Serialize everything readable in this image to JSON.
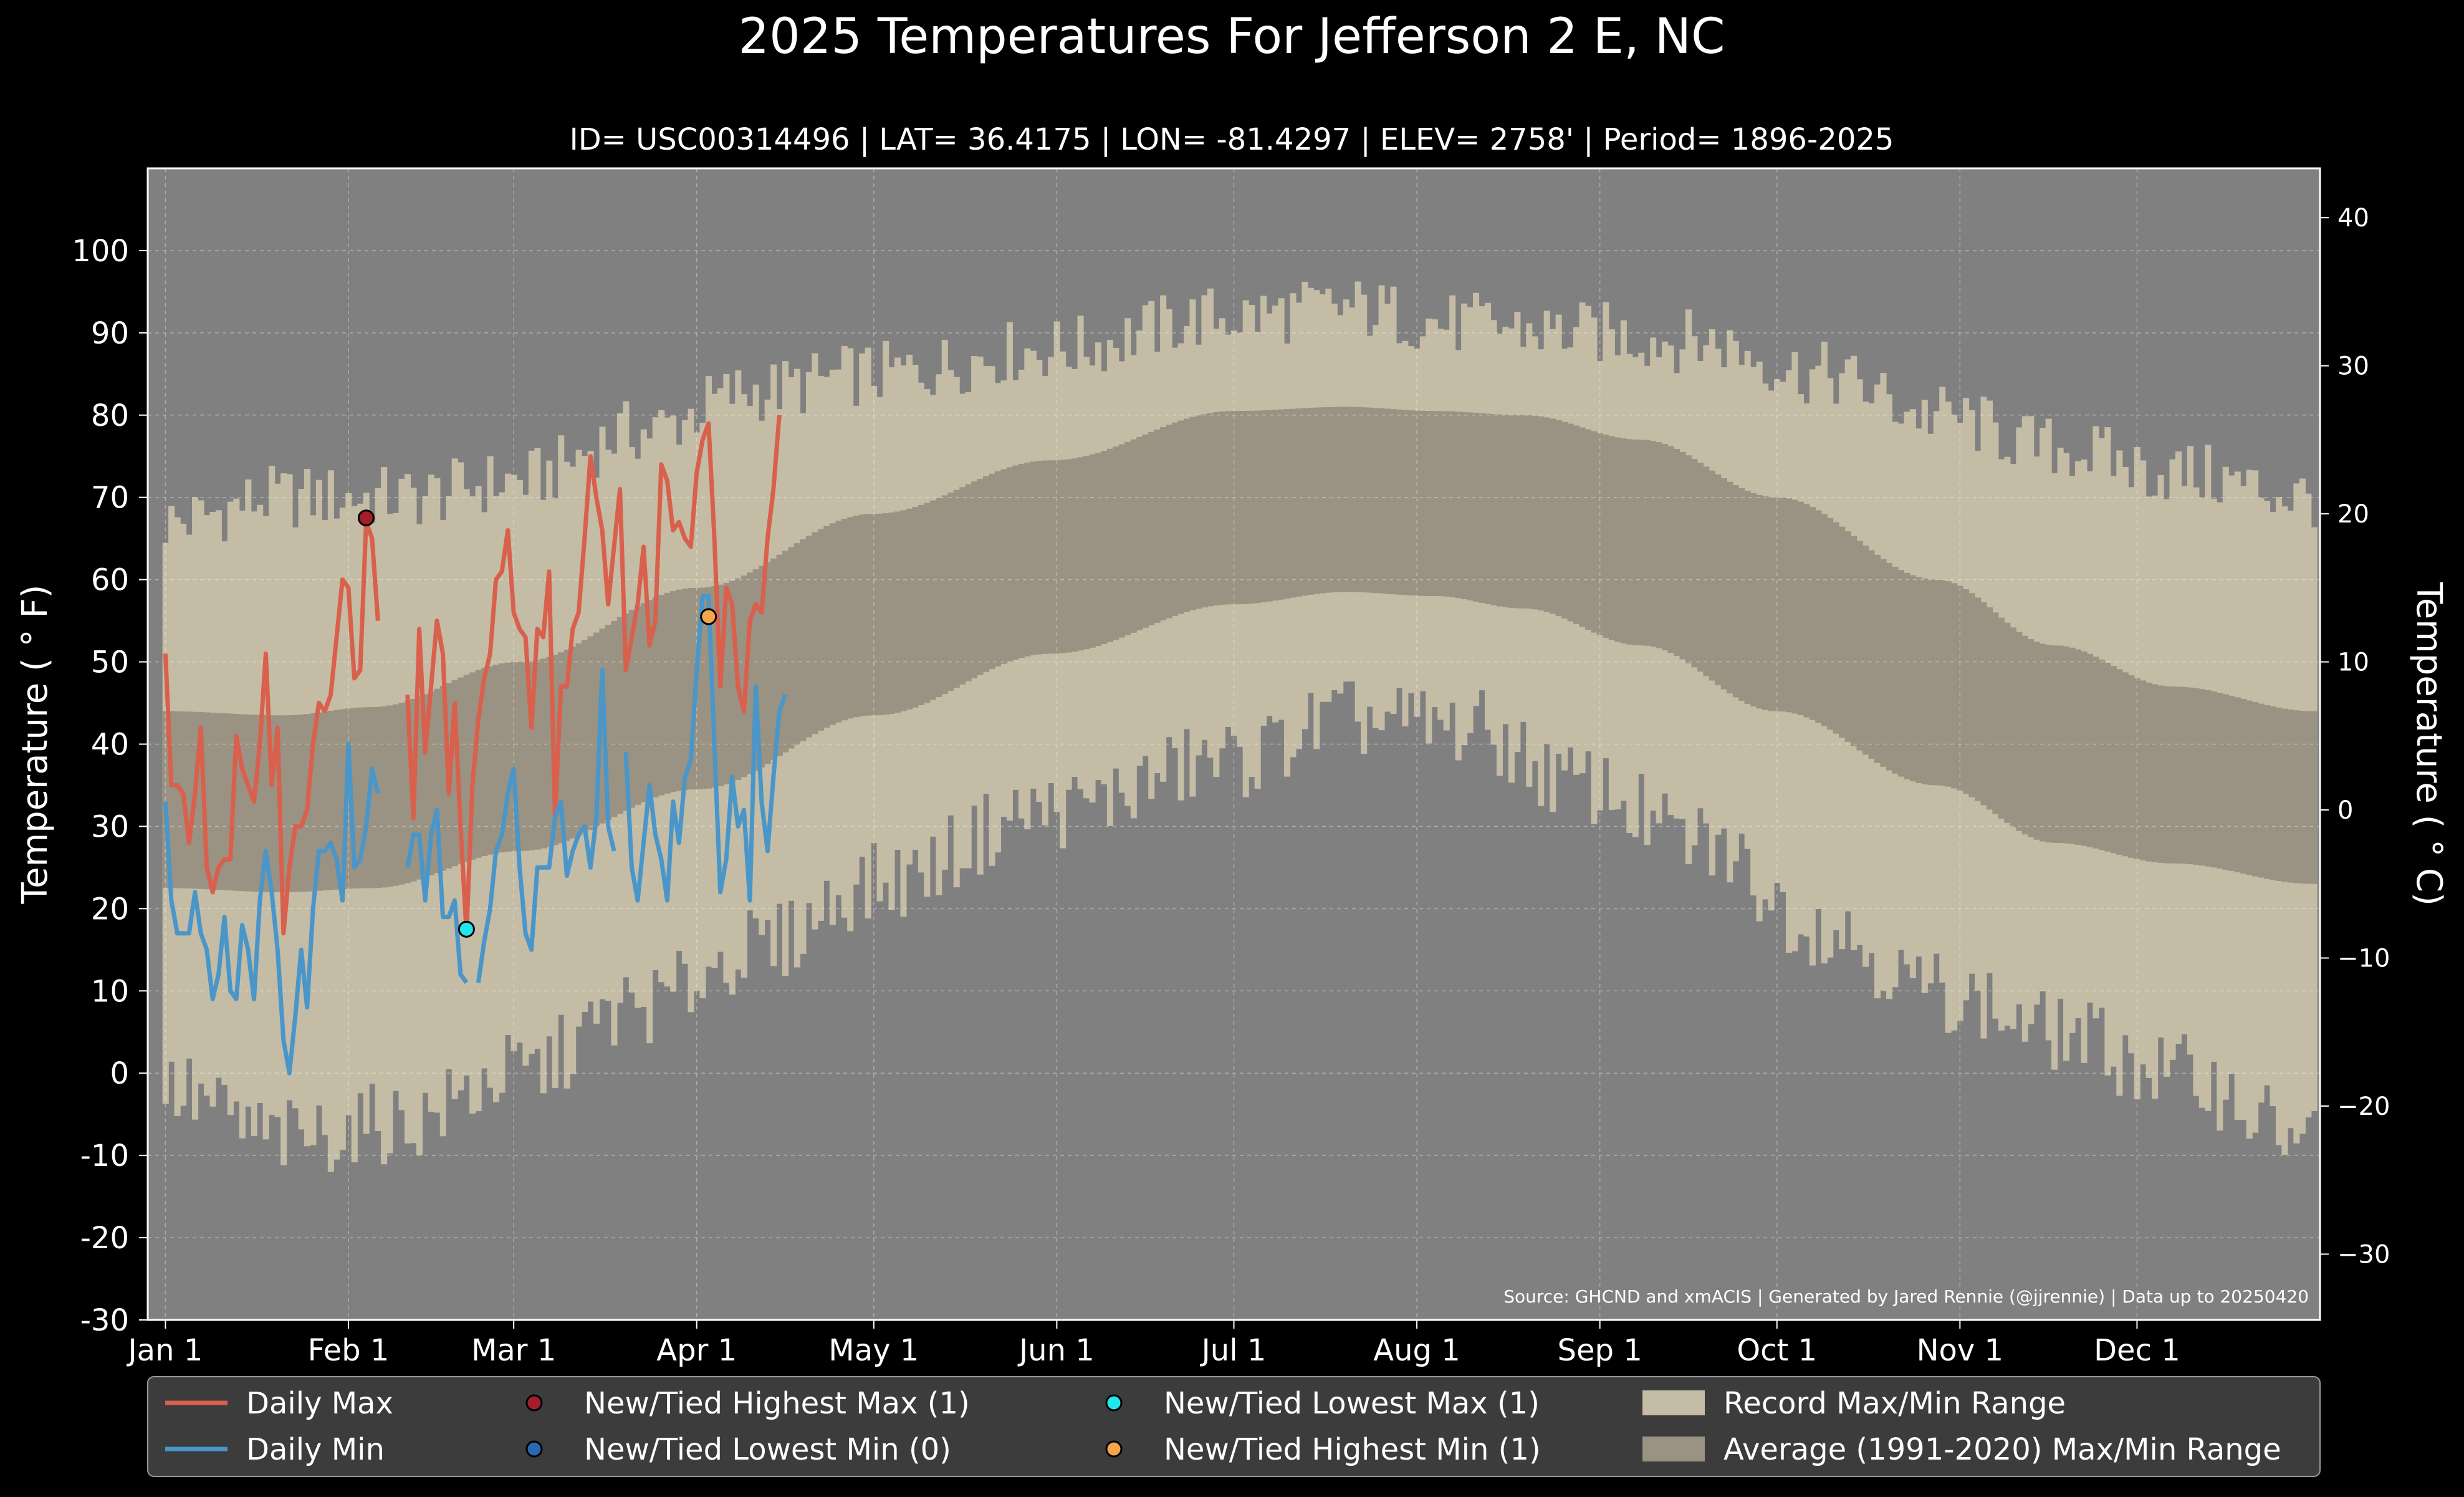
{
  "chart_data": {
    "type": "line",
    "title": "2025 Temperatures For Jefferson 2 E, NC",
    "subtitle": "ID= USC00314496 | LAT= 36.4175 | LON= -81.4297 | ELEV= 2758' | Period= 1896-2025",
    "ylabel_left": "Temperature ($^\\circ$F)",
    "ylabel_left_display": "Temperature ( ° F)",
    "ylabel_right_display": "Temperature ( ° C)",
    "source": "Source: GHCND and xmACIS | Generated by Jared Rennie (@jjrennie) | Data up to 20250420",
    "ylim_f": [
      -30,
      110
    ],
    "yticks_f": [
      -30,
      -20,
      -10,
      0,
      10,
      20,
      30,
      40,
      50,
      60,
      70,
      80,
      90,
      100
    ],
    "yticks_c": [
      -30,
      -20,
      -10,
      0,
      10,
      20,
      30,
      40
    ],
    "xlim_day": [
      -3,
      365
    ],
    "xticks": [
      {
        "day": 0,
        "label": "Jan 1"
      },
      {
        "day": 31,
        "label": "Feb 1"
      },
      {
        "day": 59,
        "label": "Mar 1"
      },
      {
        "day": 90,
        "label": "Apr 1"
      },
      {
        "day": 120,
        "label": "May 1"
      },
      {
        "day": 151,
        "label": "Jun 1"
      },
      {
        "day": 181,
        "label": "Jul 1"
      },
      {
        "day": 212,
        "label": "Aug 1"
      },
      {
        "day": 243,
        "label": "Sep 1"
      },
      {
        "day": 273,
        "label": "Oct 1"
      },
      {
        "day": 304,
        "label": "Nov 1"
      },
      {
        "day": 334,
        "label": "Dec 1"
      }
    ],
    "grid": true,
    "legend_position": "bottom",
    "colors": {
      "background": "#000000",
      "plot_bg": "#808080",
      "record_range": "#c4bca5",
      "normal_range": "#9a9282",
      "daily_max": "#d9604c",
      "daily_min": "#4a96c9",
      "new_high_max": "#a31d2b",
      "new_low_min": "#2c68b0",
      "new_low_max": "#22e6ee",
      "new_high_min": "#f5a64b",
      "legend_bg": "#3c3c3c"
    },
    "record_max_anchors": [
      [
        0,
        67
      ],
      [
        20,
        70
      ],
      [
        40,
        70
      ],
      [
        60,
        72
      ],
      [
        80,
        78
      ],
      [
        100,
        83
      ],
      [
        120,
        85
      ],
      [
        150,
        88
      ],
      [
        180,
        92
      ],
      [
        200,
        93
      ],
      [
        220,
        91
      ],
      [
        240,
        90
      ],
      [
        260,
        89
      ],
      [
        280,
        85
      ],
      [
        300,
        80
      ],
      [
        320,
        76
      ],
      [
        340,
        73
      ],
      [
        364,
        70
      ]
    ],
    "record_min_anchors": [
      [
        0,
        -2
      ],
      [
        20,
        -8
      ],
      [
        40,
        -6
      ],
      [
        60,
        0
      ],
      [
        80,
        8
      ],
      [
        100,
        15
      ],
      [
        120,
        23
      ],
      [
        150,
        32
      ],
      [
        180,
        38
      ],
      [
        200,
        43
      ],
      [
        220,
        42
      ],
      [
        240,
        35
      ],
      [
        260,
        28
      ],
      [
        280,
        18
      ],
      [
        300,
        10
      ],
      [
        320,
        5
      ],
      [
        340,
        0
      ],
      [
        364,
        -8
      ]
    ],
    "normal_max_anchors": [
      [
        0,
        44
      ],
      [
        20,
        43.5
      ],
      [
        35,
        44.5
      ],
      [
        60,
        50
      ],
      [
        90,
        59
      ],
      [
        120,
        68
      ],
      [
        150,
        74.5
      ],
      [
        181,
        80.5
      ],
      [
        200,
        81
      ],
      [
        215,
        80.5
      ],
      [
        230,
        80
      ],
      [
        250,
        77
      ],
      [
        273,
        70
      ],
      [
        300,
        60
      ],
      [
        320,
        52
      ],
      [
        340,
        47
      ],
      [
        364,
        44
      ]
    ],
    "normal_min_anchors": [
      [
        0,
        22.5
      ],
      [
        20,
        22
      ],
      [
        35,
        22.5
      ],
      [
        60,
        27
      ],
      [
        90,
        34.5
      ],
      [
        120,
        43.5
      ],
      [
        150,
        51
      ],
      [
        181,
        57
      ],
      [
        200,
        58.5
      ],
      [
        215,
        58
      ],
      [
        230,
        56.5
      ],
      [
        250,
        52
      ],
      [
        273,
        44
      ],
      [
        300,
        35
      ],
      [
        320,
        28
      ],
      [
        340,
        25.5
      ],
      [
        364,
        23
      ]
    ],
    "series": [
      {
        "name": "Daily Max",
        "values": [
          51,
          35,
          35,
          34,
          28,
          34,
          42,
          25,
          22,
          25,
          26,
          26,
          41,
          37,
          35,
          33,
          40,
          51,
          35,
          42,
          17,
          25,
          30,
          30,
          32,
          40,
          45,
          44,
          46,
          53,
          60,
          59,
          48,
          49,
          67,
          65,
          55,
          null,
          null,
          null,
          null,
          null,
          null,
          null,
          null,
          null,
          null,
          null,
          null,
          null,
          null,
          null,
          null,
          null,
          null,
          null,
          null,
          null,
          null,
          null,
          null,
          null,
          null,
          null,
          null,
          null,
          null,
          null,
          null,
          null,
          null,
          null,
          null,
          null,
          null,
          null,
          null,
          null,
          null,
          null,
          null,
          null,
          null,
          null,
          null,
          null,
          null,
          null,
          null,
          null,
          null,
          null,
          null,
          null,
          null,
          null,
          null,
          null,
          null,
          null,
          null,
          null,
          null,
          null,
          null,
          null,
          null,
          null,
          null,
          null,
          null,
          null
        ]
      },
      {
        "name": "Daily Min",
        "values": [
          33,
          21,
          17,
          17,
          17,
          22,
          17,
          15,
          9,
          12,
          19,
          10,
          9,
          18,
          15,
          9,
          21,
          27,
          22,
          15,
          4,
          0,
          7,
          15,
          8,
          20,
          27,
          27,
          28,
          26,
          21,
          40,
          25,
          26,
          30,
          37,
          34
        ]
      },
      {
        "name": "Daily Max (cont.)",
        "start_day": 41,
        "values": [
          46,
          31,
          54,
          39,
          47,
          55,
          51,
          34,
          45,
          30,
          17,
          35,
          43,
          48,
          51,
          60,
          61,
          66,
          56,
          54,
          53,
          42,
          54,
          53,
          61,
          31,
          47,
          47,
          54,
          56,
          65,
          75,
          70,
          66,
          57,
          64,
          71,
          49,
          53,
          57,
          64,
          52,
          55,
          74,
          72,
          66,
          67,
          65,
          64,
          73,
          77,
          79,
          65,
          47,
          59,
          57,
          47,
          44,
          55,
          57,
          56,
          65,
          71,
          80
        ]
      },
      {
        "name": "Daily Min (cont.)",
        "start_day": 41,
        "values": [
          25,
          29,
          29,
          21,
          29,
          32,
          19,
          19,
          21,
          12,
          11,
          null,
          11,
          16,
          20,
          27,
          29,
          34,
          37,
          25,
          17,
          15,
          25,
          25,
          25,
          31,
          33,
          24,
          27,
          29,
          30,
          25,
          31,
          49,
          30,
          27,
          null,
          39,
          25,
          21,
          28,
          35,
          29,
          26,
          21,
          33,
          28,
          36,
          38,
          49,
          58,
          58,
          40,
          22,
          26,
          36,
          30,
          32,
          21,
          47,
          33,
          27,
          36,
          44,
          46
        ]
      }
    ],
    "record_markers": [
      {
        "type": "new_high_max",
        "day": 34,
        "value": 67.5
      },
      {
        "type": "new_low_max",
        "day": 51,
        "value": 17.5
      },
      {
        "type": "new_high_min",
        "day": 92,
        "value": 55.5
      }
    ],
    "legend": [
      {
        "key": "daily_max",
        "kind": "line",
        "label": "Daily Max"
      },
      {
        "key": "daily_min",
        "kind": "line",
        "label": "Daily Min"
      },
      {
        "key": "new_high_max",
        "kind": "dot",
        "label": "New/Tied Highest Max (1)"
      },
      {
        "key": "new_low_min",
        "kind": "dot",
        "label": "New/Tied Lowest Min (0)"
      },
      {
        "key": "new_low_max",
        "kind": "dot",
        "label": "New/Tied Lowest Max (1)"
      },
      {
        "key": "new_high_min",
        "kind": "dot",
        "label": "New/Tied Highest Min (1)"
      },
      {
        "key": "record_range",
        "kind": "patch",
        "label": "Record Max/Min Range"
      },
      {
        "key": "normal_range",
        "kind": "patch",
        "label": "Average (1991-2020) Max/Min Range"
      }
    ]
  }
}
